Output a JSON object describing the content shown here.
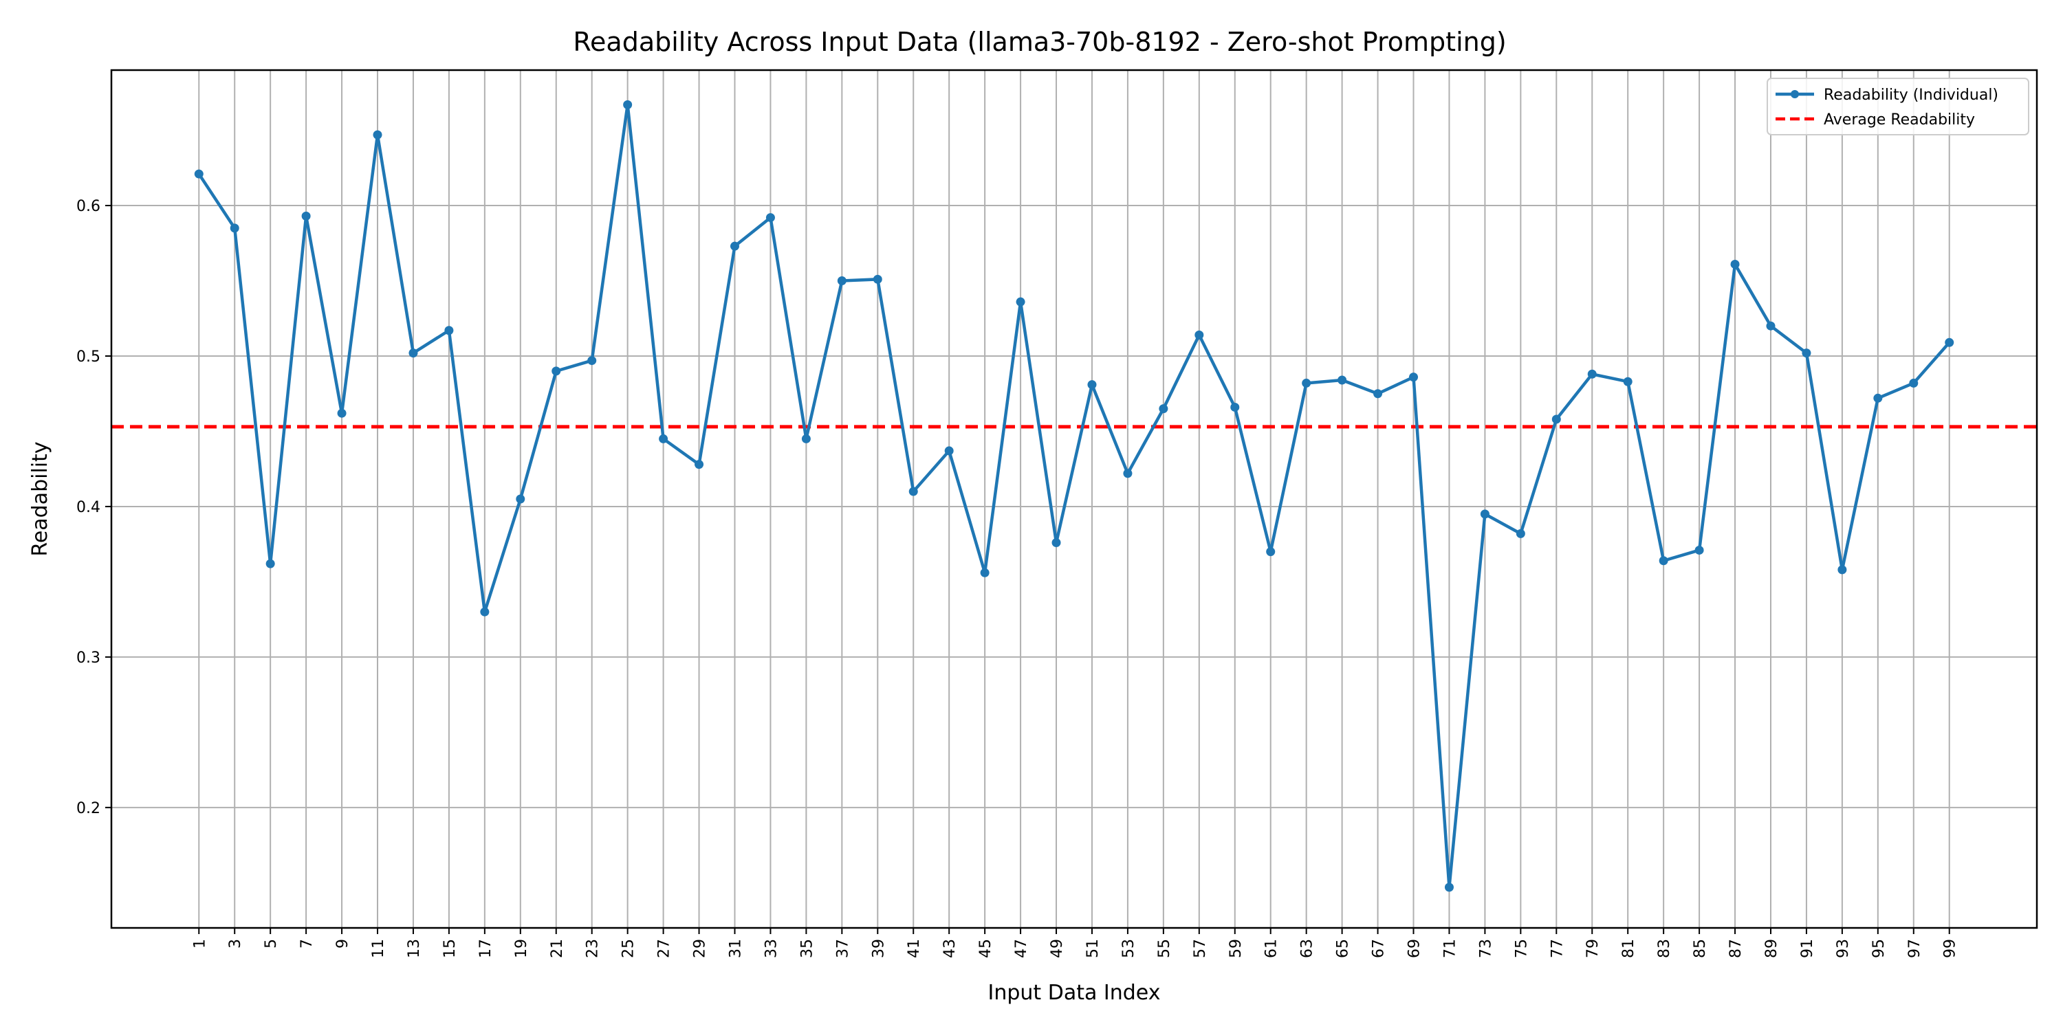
{
  "chart_data": {
    "type": "line",
    "title": "Readability Across Input Data (llama3-70b-8192 - Zero-shot Prompting)",
    "xlabel": "Input Data Index",
    "ylabel": "Readability",
    "x": [
      1,
      3,
      5,
      7,
      9,
      11,
      13,
      15,
      17,
      19,
      21,
      23,
      25,
      27,
      29,
      31,
      33,
      35,
      37,
      39,
      41,
      43,
      45,
      47,
      49,
      51,
      53,
      55,
      57,
      59,
      61,
      63,
      65,
      67,
      69,
      71,
      73,
      75,
      77,
      79,
      81,
      83,
      85,
      87,
      89,
      91,
      93,
      95,
      97,
      99
    ],
    "xtick_labels": [
      "1",
      "3",
      "5",
      "7",
      "9",
      "11",
      "13",
      "15",
      "17",
      "19",
      "21",
      "23",
      "25",
      "27",
      "29",
      "31",
      "33",
      "35",
      "37",
      "39",
      "41",
      "43",
      "45",
      "47",
      "49",
      "51",
      "53",
      "55",
      "57",
      "59",
      "61",
      "63",
      "65",
      "67",
      "69",
      "71",
      "73",
      "75",
      "77",
      "79",
      "81",
      "83",
      "85",
      "87",
      "89",
      "91",
      "93",
      "95",
      "97",
      "99"
    ],
    "xlim": [
      -3.9,
      103.9
    ],
    "ylim": [
      0.12,
      0.69
    ],
    "yticks": [
      0.2,
      0.3,
      0.4,
      0.5,
      0.6
    ],
    "ytick_labels": [
      "0.2",
      "0.3",
      "0.4",
      "0.5",
      "0.6"
    ],
    "grid": true,
    "legend_position": "top-right",
    "series": [
      {
        "name": "Readability (Individual)",
        "color": "#1f77b4",
        "style": "solid-with-markers",
        "values": [
          0.621,
          0.585,
          0.362,
          0.593,
          0.462,
          0.647,
          0.502,
          0.517,
          0.33,
          0.405,
          0.49,
          0.497,
          0.667,
          0.445,
          0.428,
          0.573,
          0.592,
          0.445,
          0.55,
          0.551,
          0.41,
          0.437,
          0.356,
          0.536,
          0.376,
          0.481,
          0.422,
          0.465,
          0.514,
          0.466,
          0.37,
          0.482,
          0.484,
          0.475,
          0.486,
          0.147,
          0.395,
          0.382,
          0.458,
          0.488,
          0.483,
          0.364,
          0.371,
          0.561,
          0.52,
          0.502,
          0.358,
          0.472,
          0.482,
          0.509
        ]
      }
    ],
    "reference_line": {
      "name": "Average Readability",
      "color": "#ff0000",
      "style": "dashed",
      "value": 0.453
    }
  }
}
